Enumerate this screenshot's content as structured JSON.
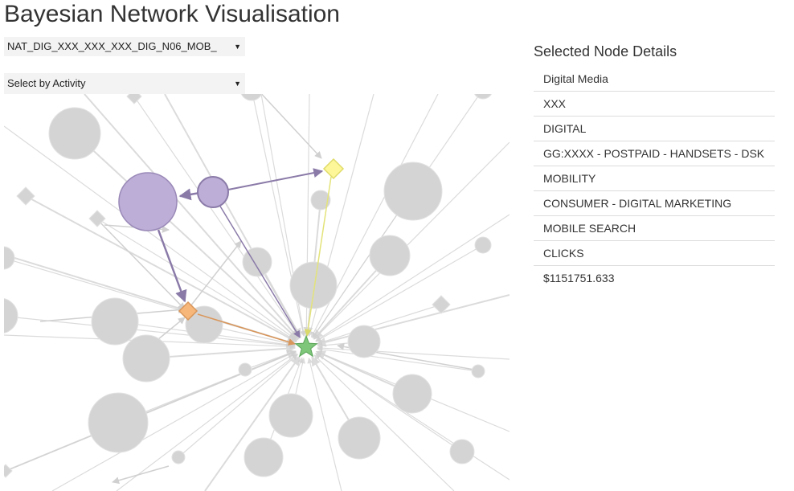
{
  "page": {
    "title": "Bayesian Network Visualisation"
  },
  "controls": {
    "model_select": {
      "value": "NAT_DIG_XXX_XXX_XXX_DIG_N06_MOB_"
    },
    "activity_select": {
      "value": "Select by Activity"
    }
  },
  "details": {
    "heading": "Selected Node Details",
    "items": [
      "Digital Media",
      "XXX",
      "DIGITAL",
      "GG:XXXX - POSTPAID - HANDSETS - DSK",
      "MOBILITY",
      "CONSUMER - DIGITAL MARKETING",
      "MOBILE SEARCH",
      "CLICKS",
      "$1151751.633"
    ]
  },
  "colors": {
    "node_default": "#d4d4d4",
    "node_parent": "#bcaed6",
    "node_target": "#7dc67a",
    "node_intermediate": "#f7b77b",
    "node_child": "#fdf79a",
    "edge_default": "#d0d0d0",
    "edge_highlight": "#8a7aa8"
  }
}
